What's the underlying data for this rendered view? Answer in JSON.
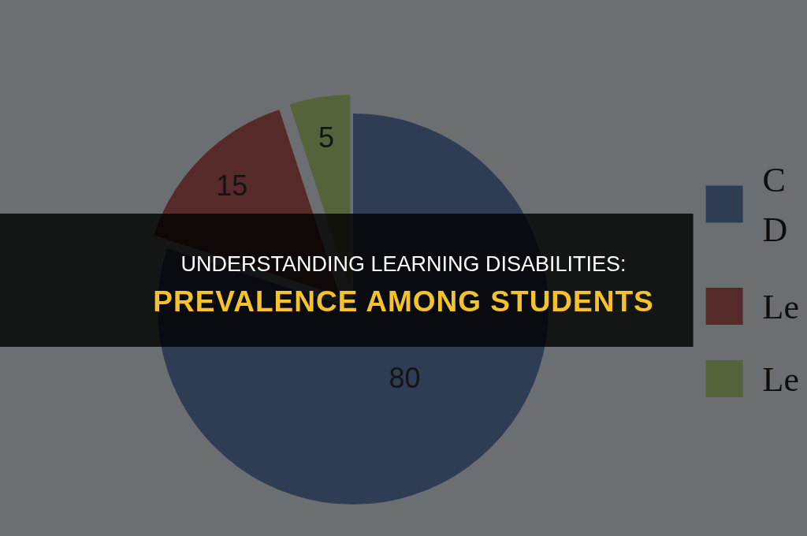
{
  "chart_data": {
    "type": "pie",
    "title": "UNDERSTANDING LEARNING DISABILITIES:",
    "subtitle": "PREVALENCE AMONG STUDENTS",
    "categories": [
      "C D",
      "Le",
      "Le"
    ],
    "values": [
      80,
      15,
      5
    ],
    "colors": [
      "#2e3c54",
      "#552a28",
      "#55633a"
    ],
    "data_labels": true,
    "legend": "right"
  }
}
